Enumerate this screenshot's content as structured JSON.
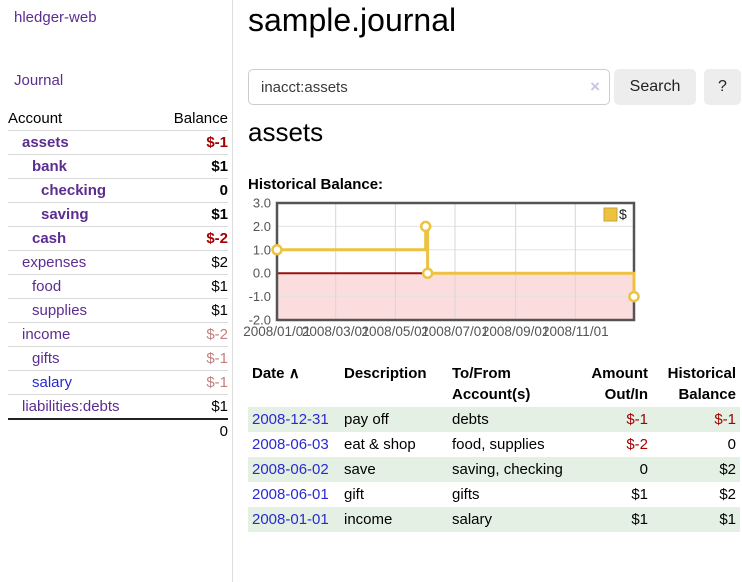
{
  "colors": {
    "accent_purple": "#5c2d91",
    "link_blue": "#2a2ad0",
    "negative_red": "#a40000",
    "soft_negative": "#c27f7f",
    "row_green": "#e3f0e3",
    "series_yellow": "#edc240",
    "chart_negative_region": "#fbdddd",
    "chart_zero_line": "#991111",
    "button_gray": "#ededed"
  },
  "sidebar": {
    "brand": "hledger-web",
    "journal_link": "Journal",
    "accounts_header": {
      "account": "Account",
      "balance": "Balance"
    },
    "accounts": [
      {
        "name": "assets",
        "balance": "$-1",
        "depth": 0,
        "bold": true,
        "balance_style": "neg"
      },
      {
        "name": "bank",
        "balance": "$1",
        "depth": 1,
        "bold": true,
        "balance_style": ""
      },
      {
        "name": "checking",
        "balance": "0",
        "depth": 2,
        "bold": true,
        "balance_style": ""
      },
      {
        "name": "saving",
        "balance": "$1",
        "depth": 2,
        "bold": true,
        "balance_style": ""
      },
      {
        "name": "cash",
        "balance": "$-2",
        "depth": 1,
        "bold": true,
        "balance_style": "neg"
      },
      {
        "name": "expenses",
        "balance": "$2",
        "depth": 0,
        "bold": false,
        "balance_style": ""
      },
      {
        "name": "food",
        "balance": "$1",
        "depth": 1,
        "bold": false,
        "balance_style": ""
      },
      {
        "name": "supplies",
        "balance": "$1",
        "depth": 1,
        "bold": false,
        "balance_style": ""
      },
      {
        "name": "income",
        "balance": "$-2",
        "depth": 0,
        "bold": false,
        "balance_style": "soft"
      },
      {
        "name": "gifts",
        "balance": "$-1",
        "depth": 1,
        "bold": false,
        "balance_style": "soft"
      },
      {
        "name": "salary",
        "balance": "$-1",
        "depth": 1,
        "bold": false,
        "balance_style": "soft",
        "name_style": "blue"
      },
      {
        "name": "liabilities:debts",
        "balance": "$1",
        "depth": 0,
        "bold": false,
        "balance_style": ""
      }
    ],
    "total": "0"
  },
  "header": {
    "title": "sample.journal"
  },
  "search": {
    "value": "inacct:assets",
    "clear_icon": "×",
    "button_label": "Search",
    "help_label": "?"
  },
  "account_view": {
    "heading": "assets",
    "chart_title": "Historical Balance:"
  },
  "chart_data": {
    "type": "line",
    "title": "Historical Balance:",
    "step": true,
    "legend": [
      {
        "label": "$",
        "color": "#edc240"
      }
    ],
    "legend_position": "top-right",
    "x_range": [
      "2008-01-01",
      "2008-12-31"
    ],
    "ylim": [
      -2,
      3
    ],
    "x_ticks": [
      "2008/01/01",
      "2008/03/01",
      "2008/05/01",
      "2008/07/01",
      "2008/09/01",
      "2008/11/01"
    ],
    "y_ticks": [
      "3.0",
      "2.0",
      "1.0",
      "0.0",
      "-1.0",
      "-2.0"
    ],
    "grid": true,
    "negative_region_color": "#fbdddd",
    "zero_line_color": "#991111",
    "series": [
      {
        "name": "$",
        "color": "#edc240",
        "points": [
          {
            "date": "2008-01-01",
            "value": 1
          },
          {
            "date": "2008-06-01",
            "value": 2
          },
          {
            "date": "2008-06-03",
            "value": 0
          },
          {
            "date": "2008-12-31",
            "value": -1
          }
        ]
      }
    ]
  },
  "transactions": {
    "columns": [
      "Date",
      "Description",
      "To/From Account(s)",
      "Amount Out/In",
      "Historical Balance"
    ],
    "sort_icon": "∧",
    "rows": [
      {
        "date": "2008-12-31",
        "description": "pay off",
        "accounts": "debts",
        "amount": "$-1",
        "amount_neg": true,
        "balance": "$-1",
        "balance_neg": true
      },
      {
        "date": "2008-06-03",
        "description": "eat & shop",
        "accounts": "food, supplies",
        "amount": "$-2",
        "amount_neg": true,
        "balance": "0",
        "balance_neg": false
      },
      {
        "date": "2008-06-02",
        "description": "save",
        "accounts": "saving, checking",
        "amount": "0",
        "amount_neg": false,
        "balance": "$2",
        "balance_neg": false
      },
      {
        "date": "2008-06-01",
        "description": "gift",
        "accounts": "gifts",
        "amount": "$1",
        "amount_neg": false,
        "balance": "$2",
        "balance_neg": false
      },
      {
        "date": "2008-01-01",
        "description": "income",
        "accounts": "salary",
        "amount": "$1",
        "amount_neg": false,
        "balance": "$1",
        "balance_neg": false
      }
    ]
  }
}
